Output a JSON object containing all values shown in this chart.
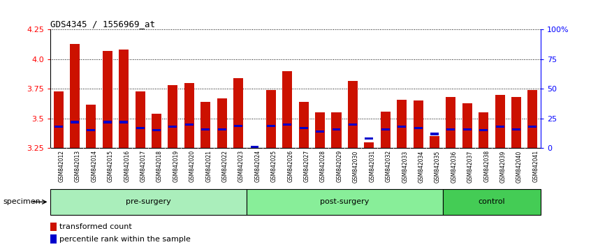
{
  "title": "GDS4345 / 1556969_at",
  "samples": [
    "GSM842012",
    "GSM842013",
    "GSM842014",
    "GSM842015",
    "GSM842016",
    "GSM842017",
    "GSM842018",
    "GSM842019",
    "GSM842020",
    "GSM842021",
    "GSM842022",
    "GSM842023",
    "GSM842024",
    "GSM842025",
    "GSM842026",
    "GSM842027",
    "GSM842028",
    "GSM842029",
    "GSM842030",
    "GSM842031",
    "GSM842032",
    "GSM842033",
    "GSM842034",
    "GSM842035",
    "GSM842036",
    "GSM842037",
    "GSM842038",
    "GSM842039",
    "GSM842040",
    "GSM842041"
  ],
  "transformed_count": [
    3.73,
    4.13,
    3.62,
    4.07,
    4.08,
    3.73,
    3.54,
    3.78,
    3.8,
    3.64,
    3.67,
    3.84,
    3.25,
    3.74,
    3.9,
    3.64,
    3.55,
    3.55,
    3.82,
    3.3,
    3.56,
    3.66,
    3.65,
    3.35,
    3.68,
    3.63,
    3.55,
    3.7,
    3.68,
    3.74
  ],
  "percentile_rank": [
    18,
    22,
    15,
    22,
    22,
    17,
    15,
    18,
    20,
    16,
    16,
    19,
    1,
    19,
    20,
    17,
    14,
    16,
    20,
    8,
    16,
    18,
    17,
    12,
    16,
    16,
    15,
    18,
    16,
    18
  ],
  "ymin": 3.25,
  "ymax": 4.25,
  "yticks": [
    3.25,
    3.5,
    3.75,
    4.0,
    4.25
  ],
  "right_yticks": [
    0,
    25,
    50,
    75,
    100
  ],
  "right_yticklabels": [
    "0",
    "25",
    "50",
    "75",
    "100%"
  ],
  "bar_color": "#CC1100",
  "percentile_color": "#0000CC",
  "background_color": "#FFFFFF",
  "tick_bg_color": "#C8C8C8",
  "group_defs": [
    {
      "start": 0,
      "end": 12,
      "label": "pre-surgery",
      "color": "#AAEEBB"
    },
    {
      "start": 12,
      "end": 24,
      "label": "post-surgery",
      "color": "#88EE99"
    },
    {
      "start": 24,
      "end": 30,
      "label": "control",
      "color": "#44CC55"
    }
  ]
}
